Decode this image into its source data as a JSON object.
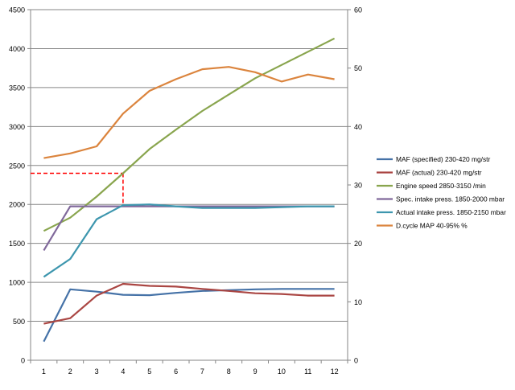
{
  "chart_data": {
    "type": "line",
    "categories": [
      "1",
      "2",
      "3",
      "4",
      "5",
      "6",
      "7",
      "8",
      "9",
      "10",
      "11",
      "12"
    ],
    "y_left": {
      "min": 0,
      "max": 4500,
      "ticks": [
        "0",
        "500",
        "1000",
        "1500",
        "2000",
        "2500",
        "3000",
        "3500",
        "4000",
        "4500"
      ]
    },
    "y_right": {
      "min": 0,
      "max": 60,
      "ticks": [
        "0",
        "10",
        "20",
        "30",
        "40",
        "50",
        "60"
      ]
    },
    "series": [
      {
        "name": "MAF (specified) 230-420  mg/str",
        "color": "#4572a7",
        "axis": "left",
        "values": [
          240,
          910,
          880,
          840,
          835,
          865,
          890,
          900,
          910,
          915,
          915,
          915
        ]
      },
      {
        "name": "MAF (actual) 230-420  mg/str",
        "color": "#aa4643",
        "axis": "left",
        "values": [
          470,
          540,
          830,
          980,
          955,
          945,
          915,
          890,
          860,
          850,
          830,
          830
        ]
      },
      {
        "name": "Engine speed 2850-3150  /min",
        "color": "#89a54e",
        "axis": "left",
        "values": [
          1660,
          1830,
          2100,
          2400,
          2710,
          2960,
          3200,
          3410,
          3620,
          3790,
          3960,
          4130
        ]
      },
      {
        "name": "Spec. intake press. 1850-2000  mbar",
        "color": "#80699b",
        "axis": "left",
        "values": [
          1410,
          1975,
          1975,
          1975,
          1975,
          1975,
          1975,
          1975,
          1975,
          1975,
          1975,
          1975
        ]
      },
      {
        "name": "Actual intake press. 1850-2150  mbar",
        "color": "#3d96ae",
        "axis": "left",
        "values": [
          1070,
          1300,
          1810,
          1990,
          2000,
          1975,
          1955,
          1955,
          1955,
          1965,
          1975,
          1975
        ]
      },
      {
        "name": "D.cycle MAP 40-95%  %",
        "color": "#db843d",
        "axis": "right",
        "values": [
          34.6,
          35.4,
          36.6,
          42.2,
          46.1,
          48.1,
          49.8,
          50.2,
          49.3,
          47.7,
          48.9,
          48.1
        ]
      }
    ],
    "annotation": {
      "type": "dashed-crosshair",
      "color": "#ff0000",
      "x_category": "4",
      "y_value": 2400
    },
    "grid": "horizontal",
    "legend_position": "right"
  }
}
